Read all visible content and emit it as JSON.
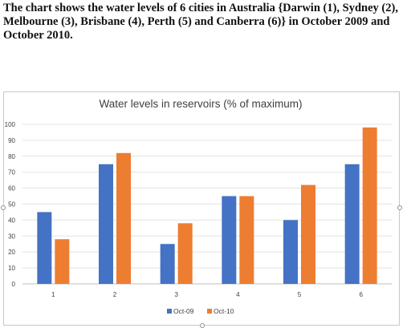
{
  "prompt": {
    "text": "The chart shows the water levels of 6 cities in Australia {Darwin (1), Sydney (2), Melbourne (3), Brisbane (4), Perth (5) and Canberra (6)} in October 2009 and October 2010."
  },
  "chart_data": {
    "type": "bar",
    "title": "Water levels in reservoirs (% of maximum)",
    "xlabel": "",
    "ylabel": "",
    "categories": [
      "1",
      "2",
      "3",
      "4",
      "5",
      "6"
    ],
    "series": [
      {
        "name": "Oct-09",
        "color": "#4472c4",
        "values": [
          45,
          75,
          25,
          55,
          40,
          75
        ]
      },
      {
        "name": "Oct-10",
        "color": "#ed7d31",
        "values": [
          28,
          82,
          38,
          55,
          62,
          98
        ]
      }
    ],
    "ylim": [
      0,
      100
    ],
    "yticks": [
      0,
      10,
      20,
      30,
      40,
      50,
      60,
      70,
      80,
      90,
      100
    ],
    "grid": true,
    "legend": "bottom"
  }
}
